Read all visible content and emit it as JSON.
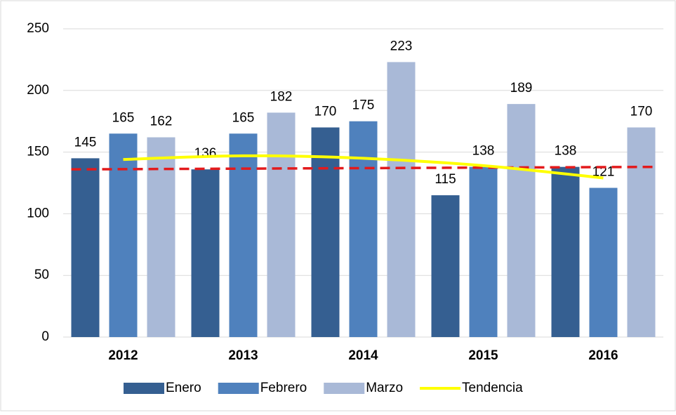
{
  "chart_data": {
    "type": "bar",
    "categories": [
      "2012",
      "2013",
      "2014",
      "2015",
      "2016"
    ],
    "series": [
      {
        "name": "Enero",
        "color": "#355f91",
        "values": [
          145,
          136,
          170,
          115,
          138
        ]
      },
      {
        "name": "Febrero",
        "color": "#4f81bd",
        "values": [
          165,
          165,
          175,
          138,
          121
        ]
      },
      {
        "name": "Marzo",
        "color": "#a9b9d7",
        "values": [
          162,
          182,
          223,
          189,
          170
        ]
      }
    ],
    "trend": {
      "name": "Tendencia",
      "color": "#ffff00",
      "values": [
        144,
        147,
        145,
        139,
        129
      ]
    },
    "dashed_line": {
      "color": "#e31a1c",
      "start": 136,
      "end": 138
    },
    "ylim": [
      0,
      250
    ],
    "yticks": [
      0,
      50,
      100,
      150,
      200,
      250
    ],
    "grid": true,
    "legend": "bottom"
  }
}
